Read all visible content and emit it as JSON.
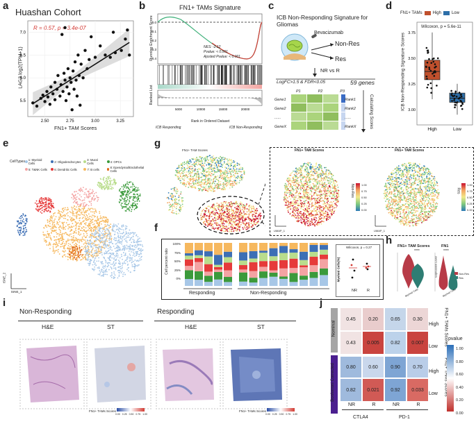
{
  "labels": {
    "a": "a",
    "b": "b",
    "c": "c",
    "d": "d",
    "e": "e",
    "f": "f",
    "g": "g",
    "h": "h",
    "i": "i",
    "j": "j"
  },
  "panel_a": {
    "title": "Huashan Cohort",
    "stat": "R = 0.57, p = 3.4e-07",
    "ylabel": "LAG3 log2(TPM+1)",
    "xlabel": "FN1+ TAM Scores",
    "xticks": [
      "2.50",
      "2.75",
      "3.00",
      "3.25"
    ],
    "yticks": [
      "5.5",
      "6.0",
      "6.5",
      "7.0"
    ],
    "points": [
      [
        2.38,
        5.45
      ],
      [
        2.42,
        5.38
      ],
      [
        2.46,
        5.55
      ],
      [
        2.48,
        5.62
      ],
      [
        2.5,
        5.48
      ],
      [
        2.52,
        5.7
      ],
      [
        2.53,
        5.58
      ],
      [
        2.55,
        5.42
      ],
      [
        2.56,
        5.8
      ],
      [
        2.58,
        5.65
      ],
      [
        2.6,
        5.9
      ],
      [
        2.6,
        5.52
      ],
      [
        2.62,
        5.75
      ],
      [
        2.63,
        6.05
      ],
      [
        2.65,
        5.6
      ],
      [
        2.66,
        5.85
      ],
      [
        2.68,
        5.7
      ],
      [
        2.69,
        6.1
      ],
      [
        2.7,
        5.95
      ],
      [
        2.71,
        5.5
      ],
      [
        2.72,
        5.8
      ],
      [
        2.73,
        6.2
      ],
      [
        2.74,
        5.65
      ],
      [
        2.75,
        6.0
      ],
      [
        2.76,
        5.9
      ],
      [
        2.77,
        5.3
      ],
      [
        2.78,
        6.15
      ],
      [
        2.79,
        5.75
      ],
      [
        2.8,
        6.35
      ],
      [
        2.81,
        5.95
      ],
      [
        2.82,
        5.6
      ],
      [
        2.83,
        6.5
      ],
      [
        2.84,
        6.05
      ],
      [
        2.85,
        5.4
      ],
      [
        2.86,
        6.3
      ],
      [
        2.88,
        6.0
      ],
      [
        2.9,
        6.6
      ],
      [
        2.92,
        6.2
      ],
      [
        2.94,
        6.4
      ],
      [
        2.96,
        6.9
      ],
      [
        3.0,
        6.45
      ],
      [
        3.05,
        6.7
      ],
      [
        3.1,
        6.5
      ],
      [
        3.15,
        6.45
      ],
      [
        3.18,
        7.0
      ],
      [
        3.2,
        6.55
      ],
      [
        3.26,
        6.6
      ],
      [
        3.3,
        6.85
      ],
      [
        3.32,
        7.05
      ],
      [
        3.34,
        6.5
      ],
      [
        2.7,
        7.1
      ],
      [
        2.67,
        6.95
      ]
    ]
  },
  "panel_b": {
    "title": "FN1+ TAMs Signature",
    "ylabel_top": "Running Enrichment Score",
    "ylabel_bottom": "Ranked List",
    "xlabel": "Rank in Ordered Dataset",
    "stats": [
      "NES: -2.12",
      "Pvalue: < 0.001",
      "Ajusted Pvalue: < 0.001"
    ],
    "xticks": [
      "5000",
      "10000",
      "15000",
      "20000"
    ],
    "yticks": [
      "0.0",
      "-0.1",
      "-0.2",
      "-0.3",
      "-0.4"
    ],
    "left_label": "ICB Responding",
    "right_label": "ICB Non-Responding"
  },
  "panel_c": {
    "title": "ICB Non-Responding Signature for Gliomas",
    "drug": "Bevacizumab",
    "nonres": "Non-Res",
    "res": "Res",
    "compare": "NR vs R",
    "criteria": "LogFC>1.5 & FDR<0.05",
    "genes": "59 genes",
    "cols": [
      "P1",
      "P2",
      "P3"
    ],
    "rows": [
      "Gene1",
      "Gene2",
      "......",
      "GeneX"
    ],
    "ranks": [
      "Rank1",
      "Rank2",
      "......",
      "RankX"
    ],
    "side": "Calculating Scores"
  },
  "panel_d": {
    "legend_title": "FN1+ TAMs",
    "legend_high": "High",
    "legend_low": "Low",
    "stat": "Wilcoxon, p = 5.6e-11",
    "ylabel": "ICB Non-Responding Signature Scores",
    "yticks": [
      "3.00",
      "3.25",
      "3.50",
      "3.75"
    ],
    "groups": [
      "High",
      "Low"
    ],
    "color_high": "#c0502d",
    "color_low": "#2d6ea8"
  },
  "panel_e": {
    "legend_title": "CellTypes",
    "items": [
      {
        "label": "1: Myeloid Cells",
        "color": "#a7c7e7"
      },
      {
        "label": "2: Oligodendrocytes",
        "color": "#3d6fb5"
      },
      {
        "label": "3: Mural Cells",
        "color": "#b9dd8c"
      },
      {
        "label": "4: OPCs",
        "color": "#3b9a3b"
      },
      {
        "label": "5: T&NK Cells",
        "color": "#f4a3a3"
      },
      {
        "label": "6: Dendritic Cells",
        "color": "#e63a3a"
      },
      {
        "label": "7: B cells",
        "color": "#f6b85e"
      },
      {
        "label": "8: Ependymal/Endothelial Cells",
        "color": "#e06a1c"
      }
    ],
    "axis_x": "tSNE_1",
    "axis_y": "tSNE_2"
  },
  "panel_g": {
    "small_title": "FN1+ TAM Scores",
    "zoom_title_left": "FN1+ TAM Scores",
    "zoom_title_right": "FN1+ TAM Scores",
    "legend_nonres": "Non-Res",
    "legend_res": "Res",
    "legend_ticks": [
      "1.00",
      "0.75",
      "0.50",
      "0.25",
      "0.00"
    ],
    "axis_x": "UMAP_1",
    "axis_y": "UMAP_2"
  },
  "panel_f": {
    "ylabel": "Cell percent ratio",
    "yticks": [
      "100%",
      "75%",
      "50%",
      "25%",
      "0%"
    ],
    "responding": "Responding",
    "nonresponding": "Non-Responding",
    "stat": "Wilcoxon, p = 0.27",
    "inset_ylabel": "Myeloid Cells(%)",
    "inset_x": [
      "NR",
      "R"
    ]
  },
  "panel_h": {
    "title_left": "FN1+ TAM Scores",
    "title_right": "FN1",
    "ylabel": "Expression Level",
    "xlab": "Myeloid Cells",
    "legend_nonres": "Non-Res",
    "legend_res": "Res",
    "sig": "****"
  },
  "panel_i": {
    "left_title": "Non-Responding",
    "right_title": "Responding",
    "he": "H&E",
    "st": "ST",
    "colorbar_label": "FN1+ TAMs Scores",
    "colorbar_ticks": [
      "0.00",
      "0.25",
      "0.50",
      "0.75",
      "1.00"
    ]
  },
  "panel_j": {
    "row_groups": [
      "Nominal",
      "Bonferroni Corrected"
    ],
    "row_levels": [
      "High",
      "Low",
      "High",
      "Low"
    ],
    "side_label": "FN1+ TAMs Scores",
    "col_sub": [
      "NR",
      "R",
      "NR",
      "R"
    ],
    "col_groups": [
      "CTLA4",
      "PD-1"
    ],
    "values": [
      [
        "0.45",
        "0.20",
        "0.65",
        "0.30"
      ],
      [
        "0.43",
        "0.005",
        "0.82",
        "0.007"
      ],
      [
        "0.80",
        "0.60",
        "0.90",
        "0.70"
      ],
      [
        "0.82",
        "0.021",
        "0.92",
        "0.033"
      ]
    ],
    "colors": [
      [
        "#f1e3e3",
        "#e9cccc",
        "#c5d6ea",
        "#ecd6d6"
      ],
      [
        "#f1e3e3",
        "#c9443f",
        "#bcd2ea",
        "#c9443f"
      ],
      [
        "#9fbadd",
        "#c9d7ec",
        "#7ea5d4",
        "#b9cde8"
      ],
      [
        "#9fbadd",
        "#d15a55",
        "#7ea5d4",
        "#d96a63"
      ]
    ],
    "legend_title": "pvalue",
    "legend_ticks": [
      "1.00",
      "0.80",
      "0.60",
      "0.40",
      "0.20",
      "0.00"
    ]
  }
}
